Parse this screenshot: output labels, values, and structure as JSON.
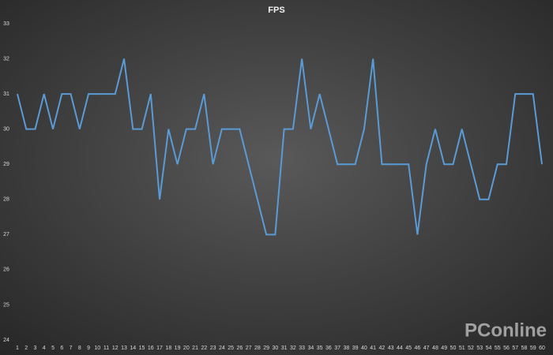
{
  "chart_data": {
    "type": "line",
    "title": "FPS",
    "categories": [
      "1",
      "2",
      "3",
      "4",
      "5",
      "6",
      "7",
      "8",
      "9",
      "10",
      "11",
      "12",
      "13",
      "14",
      "15",
      "16",
      "17",
      "18",
      "19",
      "20",
      "21",
      "22",
      "23",
      "24",
      "25",
      "26",
      "27",
      "28",
      "29",
      "30",
      "31",
      "32",
      "33",
      "34",
      "35",
      "36",
      "37",
      "38",
      "39",
      "40",
      "41",
      "42",
      "43",
      "44",
      "45",
      "46",
      "47",
      "48",
      "49",
      "50",
      "51",
      "52",
      "53",
      "54",
      "55",
      "56",
      "57",
      "58",
      "59",
      "60"
    ],
    "series": [
      {
        "name": "FPS",
        "color": "#5b9bd5",
        "values": [
          31,
          30,
          30,
          31,
          30,
          31,
          31,
          30,
          31,
          31,
          31,
          31,
          32,
          30,
          30,
          31,
          28,
          30,
          29,
          30,
          30,
          31,
          29,
          30,
          30,
          30,
          29,
          28,
          27,
          27,
          30,
          30,
          32,
          30,
          31,
          30,
          29,
          29,
          29,
          30,
          32,
          29,
          29,
          29,
          29,
          27,
          29,
          30,
          29,
          29,
          30,
          29,
          28,
          28,
          29,
          29,
          31,
          31,
          31,
          29
        ]
      }
    ],
    "ylim": [
      24,
      33
    ],
    "yticks": [
      24,
      25,
      26,
      27,
      28,
      29,
      30,
      31,
      32,
      33
    ],
    "grid": false,
    "watermark": "PConline"
  }
}
